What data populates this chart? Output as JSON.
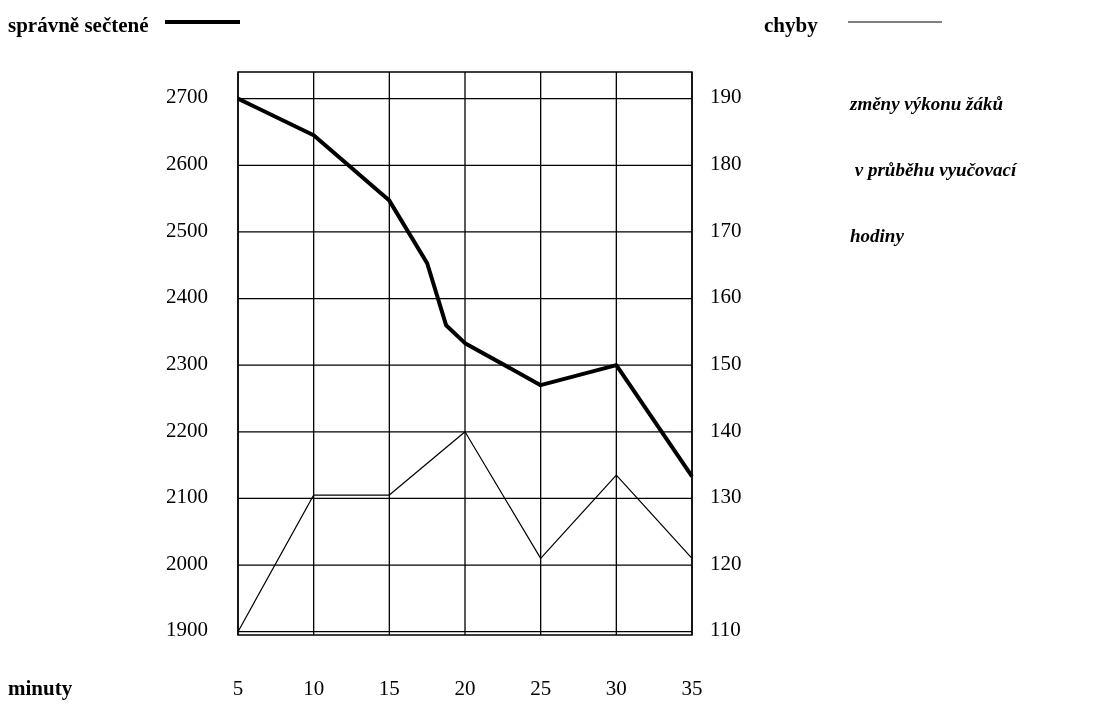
{
  "chart_data": {
    "type": "line",
    "xlabel": "minuty",
    "legend": "top",
    "grid": true,
    "line_style": "solid",
    "marker": "none",
    "xlim": [
      5,
      35
    ],
    "xticks": [
      5,
      10,
      15,
      20,
      25,
      30,
      35
    ],
    "ylim": [
      1895,
      2740
    ],
    "yticks": [
      1900,
      2000,
      2100,
      2200,
      2300,
      2400,
      2500,
      2600,
      2700
    ],
    "y2lim": [
      109.5,
      194
    ],
    "y2ticks": [
      110,
      120,
      130,
      140,
      150,
      160,
      170,
      180,
      190
    ],
    "annotations": [
      "změny výkonu žáků",
      " v průběhu vyučovací",
      "hodiny"
    ],
    "series": [
      {
        "name": "správně sečtené",
        "color": "#000000",
        "x": [
          5,
          10,
          15,
          17.5,
          18.75,
          20,
          25,
          30,
          35
        ],
        "values": [
          2700,
          2645,
          2547,
          2453,
          2360,
          2333,
          2270,
          2300,
          2133
        ]
      },
      {
        "name": "chyby",
        "color": "#000000",
        "axis": "y2",
        "x": [
          5,
          10,
          15,
          20,
          25,
          30,
          35
        ],
        "values": [
          110,
          130.5,
          130.5,
          140,
          121,
          133.5,
          121
        ]
      }
    ]
  }
}
